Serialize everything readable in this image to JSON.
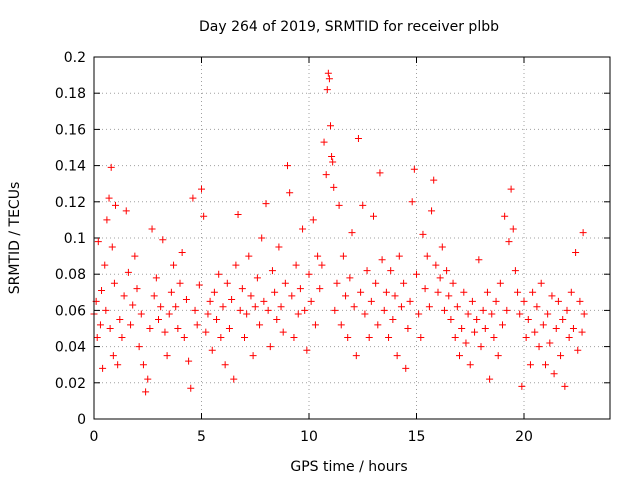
{
  "chart_data": {
    "type": "scatter",
    "title": "Day 264 of 2019, SRMTID for receiver plbb",
    "xlabel": "GPS time / hours",
    "ylabel": "SRMTID / TECUs",
    "xlim": [
      0,
      24
    ],
    "ylim": [
      0,
      0.2
    ],
    "xticks": [
      0,
      5,
      10,
      15,
      20
    ],
    "xtick_labels": [
      "0",
      "5",
      "10",
      "15",
      "20"
    ],
    "yticks": [
      0,
      0.02,
      0.04,
      0.06,
      0.08,
      0.1,
      0.12,
      0.14,
      0.16,
      0.18,
      0.2
    ],
    "ytick_labels": [
      "0",
      "0.02",
      "0.04",
      "0.06",
      "0.08",
      "0.1",
      "0.12",
      "0.14",
      "0.16",
      "0.18",
      "0.2"
    ],
    "grid": true,
    "marker": "plus",
    "color": "#ff0000",
    "series": [
      {
        "name": "SRMTID",
        "points": [
          [
            0.0,
            0.058
          ],
          [
            0.1,
            0.065
          ],
          [
            0.15,
            0.045
          ],
          [
            0.2,
            0.098
          ],
          [
            0.3,
            0.052
          ],
          [
            0.35,
            0.071
          ],
          [
            0.4,
            0.028
          ],
          [
            0.5,
            0.085
          ],
          [
            0.55,
            0.06
          ],
          [
            0.6,
            0.11
          ],
          [
            0.7,
            0.122
          ],
          [
            0.75,
            0.05
          ],
          [
            0.8,
            0.139
          ],
          [
            0.85,
            0.095
          ],
          [
            0.9,
            0.035
          ],
          [
            0.95,
            0.075
          ],
          [
            1.0,
            0.118
          ],
          [
            1.1,
            0.03
          ],
          [
            1.2,
            0.055
          ],
          [
            1.3,
            0.045
          ],
          [
            1.4,
            0.068
          ],
          [
            1.5,
            0.115
          ],
          [
            1.6,
            0.081
          ],
          [
            1.7,
            0.052
          ],
          [
            1.8,
            0.063
          ],
          [
            1.9,
            0.09
          ],
          [
            2.0,
            0.072
          ],
          [
            2.1,
            0.04
          ],
          [
            2.2,
            0.058
          ],
          [
            2.3,
            0.03
          ],
          [
            2.4,
            0.015
          ],
          [
            2.5,
            0.022
          ],
          [
            2.6,
            0.05
          ],
          [
            2.7,
            0.105
          ],
          [
            2.8,
            0.068
          ],
          [
            2.9,
            0.078
          ],
          [
            3.0,
            0.055
          ],
          [
            3.1,
            0.062
          ],
          [
            3.2,
            0.099
          ],
          [
            3.3,
            0.048
          ],
          [
            3.4,
            0.035
          ],
          [
            3.5,
            0.058
          ],
          [
            3.6,
            0.07
          ],
          [
            3.7,
            0.085
          ],
          [
            3.8,
            0.062
          ],
          [
            3.9,
            0.05
          ],
          [
            4.0,
            0.075
          ],
          [
            4.1,
            0.092
          ],
          [
            4.2,
            0.045
          ],
          [
            4.3,
            0.066
          ],
          [
            4.4,
            0.032
          ],
          [
            4.5,
            0.017
          ],
          [
            4.6,
            0.122
          ],
          [
            4.7,
            0.06
          ],
          [
            4.8,
            0.052
          ],
          [
            4.9,
            0.074
          ],
          [
            5.0,
            0.127
          ],
          [
            5.1,
            0.112
          ],
          [
            5.2,
            0.048
          ],
          [
            5.3,
            0.058
          ],
          [
            5.4,
            0.065
          ],
          [
            5.5,
            0.038
          ],
          [
            5.6,
            0.07
          ],
          [
            5.7,
            0.055
          ],
          [
            5.8,
            0.08
          ],
          [
            5.9,
            0.045
          ],
          [
            6.0,
            0.062
          ],
          [
            6.1,
            0.03
          ],
          [
            6.2,
            0.075
          ],
          [
            6.3,
            0.05
          ],
          [
            6.4,
            0.066
          ],
          [
            6.5,
            0.022
          ],
          [
            6.6,
            0.085
          ],
          [
            6.7,
            0.113
          ],
          [
            6.8,
            0.06
          ],
          [
            6.9,
            0.072
          ],
          [
            7.0,
            0.045
          ],
          [
            7.1,
            0.058
          ],
          [
            7.2,
            0.09
          ],
          [
            7.3,
            0.068
          ],
          [
            7.4,
            0.035
          ],
          [
            7.5,
            0.062
          ],
          [
            7.6,
            0.078
          ],
          [
            7.7,
            0.052
          ],
          [
            7.8,
            0.1
          ],
          [
            7.9,
            0.065
          ],
          [
            8.0,
            0.119
          ],
          [
            8.1,
            0.06
          ],
          [
            8.2,
            0.04
          ],
          [
            8.3,
            0.082
          ],
          [
            8.4,
            0.07
          ],
          [
            8.5,
            0.055
          ],
          [
            8.6,
            0.095
          ],
          [
            8.7,
            0.062
          ],
          [
            8.8,
            0.048
          ],
          [
            8.9,
            0.075
          ],
          [
            9.0,
            0.14
          ],
          [
            9.1,
            0.125
          ],
          [
            9.2,
            0.068
          ],
          [
            9.3,
            0.045
          ],
          [
            9.4,
            0.085
          ],
          [
            9.5,
            0.058
          ],
          [
            9.6,
            0.072
          ],
          [
            9.7,
            0.105
          ],
          [
            9.8,
            0.06
          ],
          [
            9.9,
            0.038
          ],
          [
            10.0,
            0.08
          ],
          [
            10.1,
            0.065
          ],
          [
            10.2,
            0.11
          ],
          [
            10.3,
            0.052
          ],
          [
            10.4,
            0.09
          ],
          [
            10.5,
            0.072
          ],
          [
            10.6,
            0.085
          ],
          [
            10.7,
            0.153
          ],
          [
            10.8,
            0.135
          ],
          [
            10.85,
            0.182
          ],
          [
            10.9,
            0.191
          ],
          [
            10.95,
            0.188
          ],
          [
            11.0,
            0.162
          ],
          [
            11.05,
            0.145
          ],
          [
            11.1,
            0.142
          ],
          [
            11.15,
            0.128
          ],
          [
            11.2,
            0.06
          ],
          [
            11.3,
            0.075
          ],
          [
            11.4,
            0.118
          ],
          [
            11.5,
            0.052
          ],
          [
            11.6,
            0.09
          ],
          [
            11.7,
            0.068
          ],
          [
            11.8,
            0.045
          ],
          [
            11.9,
            0.078
          ],
          [
            12.0,
            0.103
          ],
          [
            12.1,
            0.062
          ],
          [
            12.2,
            0.035
          ],
          [
            12.3,
            0.155
          ],
          [
            12.4,
            0.07
          ],
          [
            12.5,
            0.118
          ],
          [
            12.6,
            0.058
          ],
          [
            12.7,
            0.082
          ],
          [
            12.8,
            0.045
          ],
          [
            12.9,
            0.065
          ],
          [
            13.0,
            0.112
          ],
          [
            13.1,
            0.075
          ],
          [
            13.2,
            0.052
          ],
          [
            13.3,
            0.136
          ],
          [
            13.4,
            0.088
          ],
          [
            13.5,
            0.06
          ],
          [
            13.6,
            0.07
          ],
          [
            13.7,
            0.045
          ],
          [
            13.8,
            0.082
          ],
          [
            13.9,
            0.055
          ],
          [
            14.0,
            0.068
          ],
          [
            14.1,
            0.035
          ],
          [
            14.2,
            0.09
          ],
          [
            14.3,
            0.062
          ],
          [
            14.4,
            0.075
          ],
          [
            14.5,
            0.028
          ],
          [
            14.6,
            0.05
          ],
          [
            14.7,
            0.065
          ],
          [
            14.8,
            0.12
          ],
          [
            14.9,
            0.138
          ],
          [
            15.0,
            0.08
          ],
          [
            15.1,
            0.058
          ],
          [
            15.2,
            0.045
          ],
          [
            15.3,
            0.102
          ],
          [
            15.4,
            0.072
          ],
          [
            15.5,
            0.09
          ],
          [
            15.6,
            0.062
          ],
          [
            15.7,
            0.115
          ],
          [
            15.8,
            0.132
          ],
          [
            15.9,
            0.085
          ],
          [
            16.0,
            0.07
          ],
          [
            16.1,
            0.078
          ],
          [
            16.2,
            0.095
          ],
          [
            16.3,
            0.06
          ],
          [
            16.4,
            0.082
          ],
          [
            16.5,
            0.068
          ],
          [
            16.6,
            0.055
          ],
          [
            16.7,
            0.075
          ],
          [
            16.8,
            0.045
          ],
          [
            16.9,
            0.062
          ],
          [
            17.0,
            0.035
          ],
          [
            17.1,
            0.05
          ],
          [
            17.2,
            0.07
          ],
          [
            17.3,
            0.042
          ],
          [
            17.4,
            0.058
          ],
          [
            17.5,
            0.03
          ],
          [
            17.6,
            0.065
          ],
          [
            17.7,
            0.048
          ],
          [
            17.8,
            0.055
          ],
          [
            17.9,
            0.088
          ],
          [
            18.0,
            0.04
          ],
          [
            18.1,
            0.06
          ],
          [
            18.2,
            0.05
          ],
          [
            18.3,
            0.07
          ],
          [
            18.4,
            0.022
          ],
          [
            18.5,
            0.058
          ],
          [
            18.6,
            0.045
          ],
          [
            18.7,
            0.065
          ],
          [
            18.8,
            0.035
          ],
          [
            18.9,
            0.075
          ],
          [
            19.0,
            0.052
          ],
          [
            19.1,
            0.112
          ],
          [
            19.2,
            0.06
          ],
          [
            19.3,
            0.098
          ],
          [
            19.4,
            0.127
          ],
          [
            19.5,
            0.105
          ],
          [
            19.6,
            0.082
          ],
          [
            19.7,
            0.07
          ],
          [
            19.8,
            0.058
          ],
          [
            19.9,
            0.018
          ],
          [
            20.0,
            0.065
          ],
          [
            20.1,
            0.045
          ],
          [
            20.2,
            0.055
          ],
          [
            20.3,
            0.03
          ],
          [
            20.4,
            0.07
          ],
          [
            20.5,
            0.048
          ],
          [
            20.6,
            0.062
          ],
          [
            20.7,
            0.04
          ],
          [
            20.8,
            0.075
          ],
          [
            20.9,
            0.052
          ],
          [
            21.0,
            0.03
          ],
          [
            21.1,
            0.058
          ],
          [
            21.2,
            0.042
          ],
          [
            21.3,
            0.068
          ],
          [
            21.4,
            0.025
          ],
          [
            21.5,
            0.05
          ],
          [
            21.6,
            0.065
          ],
          [
            21.7,
            0.035
          ],
          [
            21.8,
            0.055
          ],
          [
            21.9,
            0.018
          ],
          [
            22.0,
            0.06
          ],
          [
            22.1,
            0.045
          ],
          [
            22.2,
            0.07
          ],
          [
            22.3,
            0.05
          ],
          [
            22.4,
            0.092
          ],
          [
            22.5,
            0.038
          ],
          [
            22.6,
            0.065
          ],
          [
            22.7,
            0.048
          ],
          [
            22.75,
            0.103
          ],
          [
            22.8,
            0.058
          ]
        ]
      }
    ]
  }
}
